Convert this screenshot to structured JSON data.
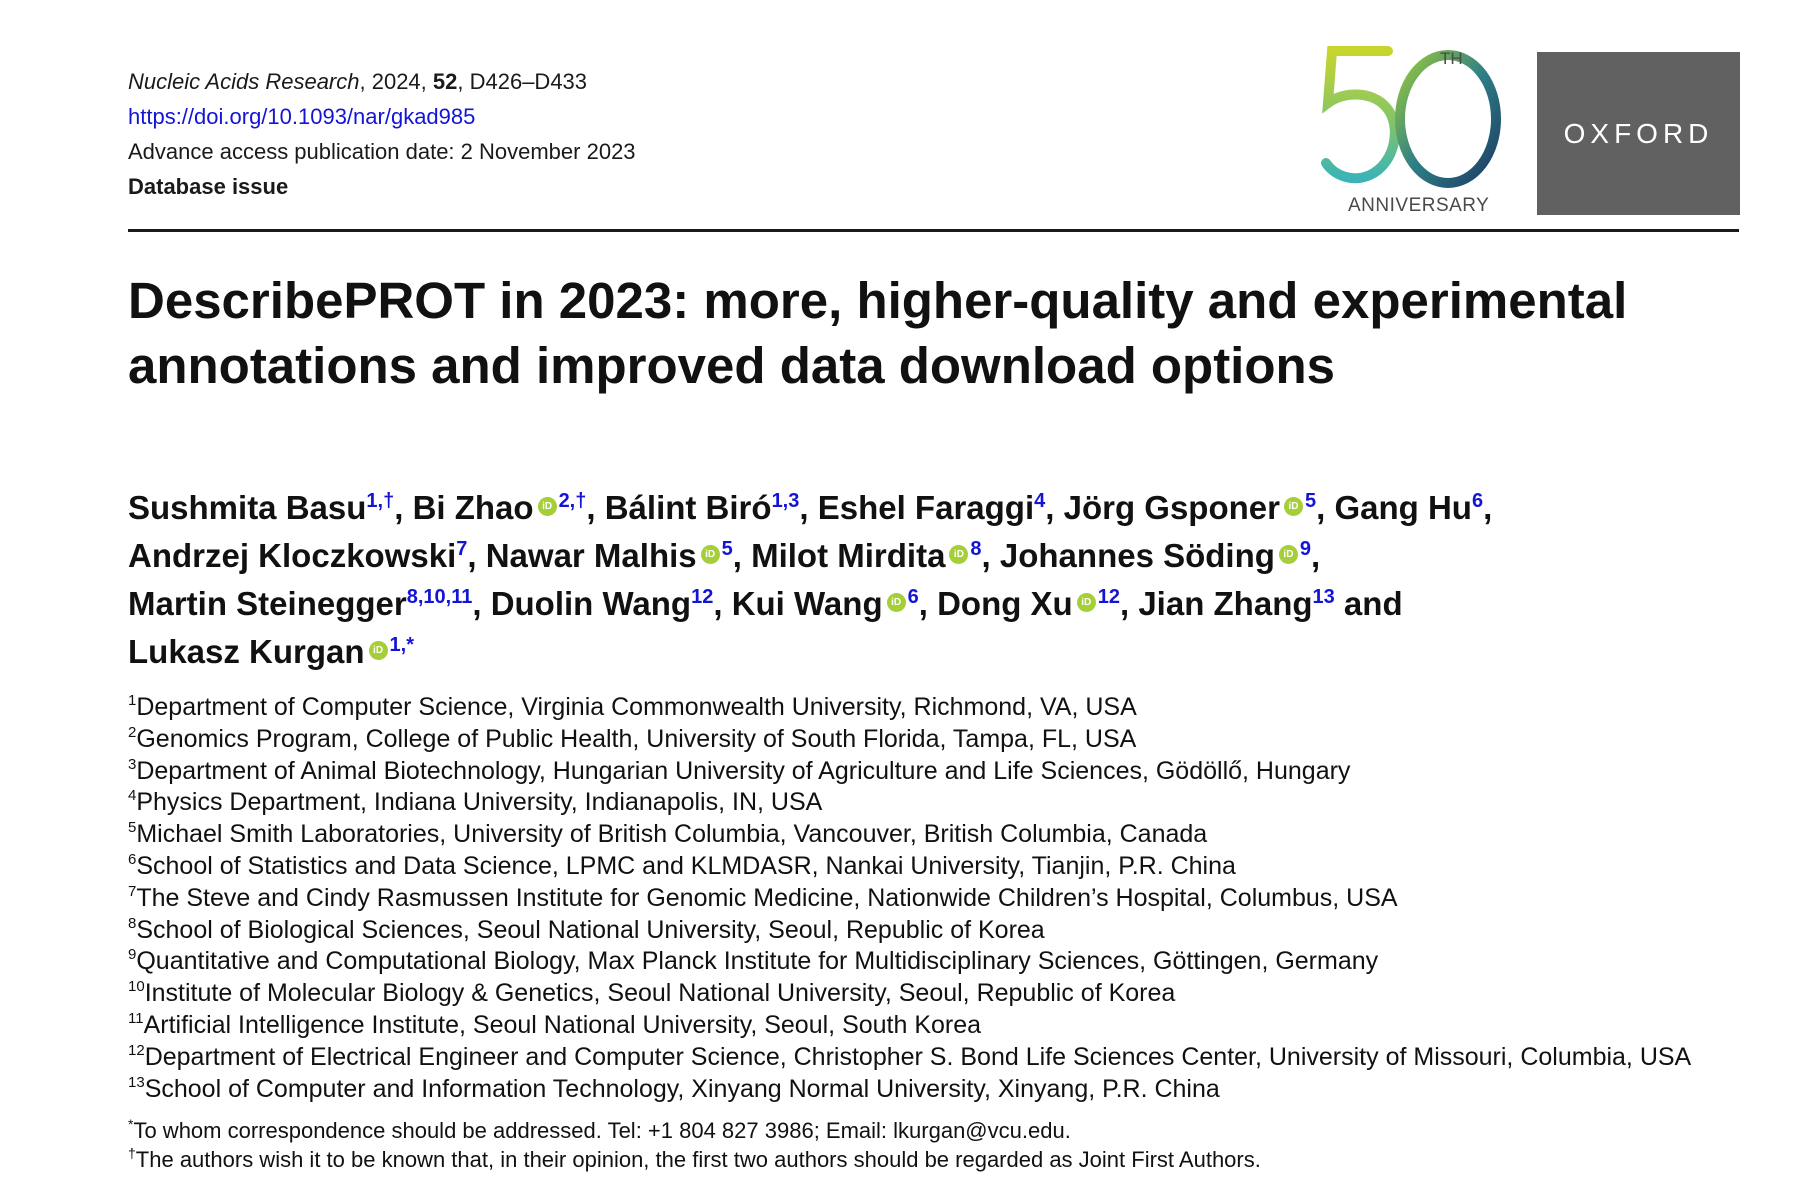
{
  "header": {
    "journal": "Nucleic Acids Research",
    "year": ", 2024, ",
    "volume": "52",
    "pages": ", D426–D433",
    "doi": "https://doi.org/10.1093/nar/gkad985",
    "publication_date": "Advance access publication date: 2 November 2023",
    "issue": "Database issue"
  },
  "logos": {
    "anniversary_number": "50",
    "anniversary_sup": "TH",
    "anniversary_label": "ANNIVERSARY",
    "publisher": "OXFORD"
  },
  "title": "DescribePROT in 2023: more, higher-quality and experimental annotations and improved data download options",
  "authors": [
    {
      "name": "Sushmita Basu",
      "orcid": false,
      "sup": "1,†",
      "sep": ", "
    },
    {
      "name": "Bi Zhao",
      "orcid": true,
      "sup": "2,†",
      "sep": ", "
    },
    {
      "name": "Bálint Biró",
      "orcid": false,
      "sup": "1,3",
      "sep": ", "
    },
    {
      "name": "Eshel Faraggi",
      "orcid": false,
      "sup": "4",
      "sep": ", "
    },
    {
      "name": "Jörg Gsponer",
      "orcid": true,
      "sup": "5",
      "sep": ", "
    },
    {
      "name": "Gang Hu",
      "orcid": false,
      "sup": "6",
      "sep": ", "
    },
    {
      "name": "Andrzej Kloczkowski",
      "orcid": false,
      "sup": "7",
      "sep": ", "
    },
    {
      "name": "Nawar Malhis",
      "orcid": true,
      "sup": "5",
      "sep": ", "
    },
    {
      "name": "Milot Mirdita",
      "orcid": true,
      "sup": "8",
      "sep": ", "
    },
    {
      "name": "Johannes Söding",
      "orcid": true,
      "sup": "9",
      "sep": ", "
    },
    {
      "name": "Martin Steinegger",
      "orcid": false,
      "sup": "8,10,11",
      "sep": ", "
    },
    {
      "name": "Duolin Wang",
      "orcid": false,
      "sup": "12",
      "sep": ", "
    },
    {
      "name": "Kui Wang",
      "orcid": true,
      "sup": "6",
      "sep": ", "
    },
    {
      "name": "Dong Xu",
      "orcid": true,
      "sup": "12",
      "sep": ", "
    },
    {
      "name": "Jian Zhang",
      "orcid": false,
      "sup": "13",
      "sep": " and "
    },
    {
      "name": "Lukasz Kurgan",
      "orcid": true,
      "sup": "1,*",
      "sep": ""
    }
  ],
  "affiliations": [
    {
      "num": "1",
      "text": "Department of Computer Science, Virginia Commonwealth University, Richmond, VA, USA"
    },
    {
      "num": "2",
      "text": "Genomics Program, College of Public Health, University of South Florida, Tampa, FL, USA"
    },
    {
      "num": "3",
      "text": "Department of Animal Biotechnology, Hungarian University of Agriculture and Life Sciences, Gödöllő, Hungary"
    },
    {
      "num": "4",
      "text": "Physics Department, Indiana University, Indianapolis, IN, USA"
    },
    {
      "num": "5",
      "text": "Michael Smith Laboratories, University of British Columbia, Vancouver, British Columbia, Canada"
    },
    {
      "num": "6",
      "text": "School of Statistics and Data Science, LPMC and KLMDASR, Nankai University, Tianjin, P.R. China"
    },
    {
      "num": "7",
      "text": "The Steve and Cindy Rasmussen Institute for Genomic Medicine, Nationwide Children’s Hospital, Columbus, USA"
    },
    {
      "num": "8",
      "text": "School of Biological Sciences, Seoul National University, Seoul, Republic of Korea"
    },
    {
      "num": "9",
      "text": "Quantitative and Computational Biology, Max Planck Institute for Multidisciplinary Sciences, Göttingen, Germany"
    },
    {
      "num": "10",
      "text": "Institute of Molecular Biology & Genetics, Seoul National University, Seoul, Republic of Korea"
    },
    {
      "num": "11",
      "text": "Artificial Intelligence Institute, Seoul National University, Seoul, South Korea"
    },
    {
      "num": "12",
      "text": "Department of Electrical Engineer and Computer Science, Christopher S. Bond Life Sciences Center, University of Missouri, Columbia, USA"
    },
    {
      "num": "13",
      "text": "School of Computer and Information Technology, Xinyang Normal University, Xinyang, P.R. China"
    }
  ],
  "footnotes": [
    {
      "mark": "*",
      "text": "To whom correspondence should be addressed. Tel: +1 804 827 3986; Email: lkurgan@vcu.edu."
    },
    {
      "mark": "†",
      "text": "The authors wish it to be known that, in their opinion, the first two authors should be regarded as Joint First Authors."
    }
  ],
  "icons": {
    "orcid": "orcid-icon"
  },
  "colors": {
    "link": "#1414d6",
    "orcid": "#a6ce39",
    "oxford_bg": "#616161"
  }
}
